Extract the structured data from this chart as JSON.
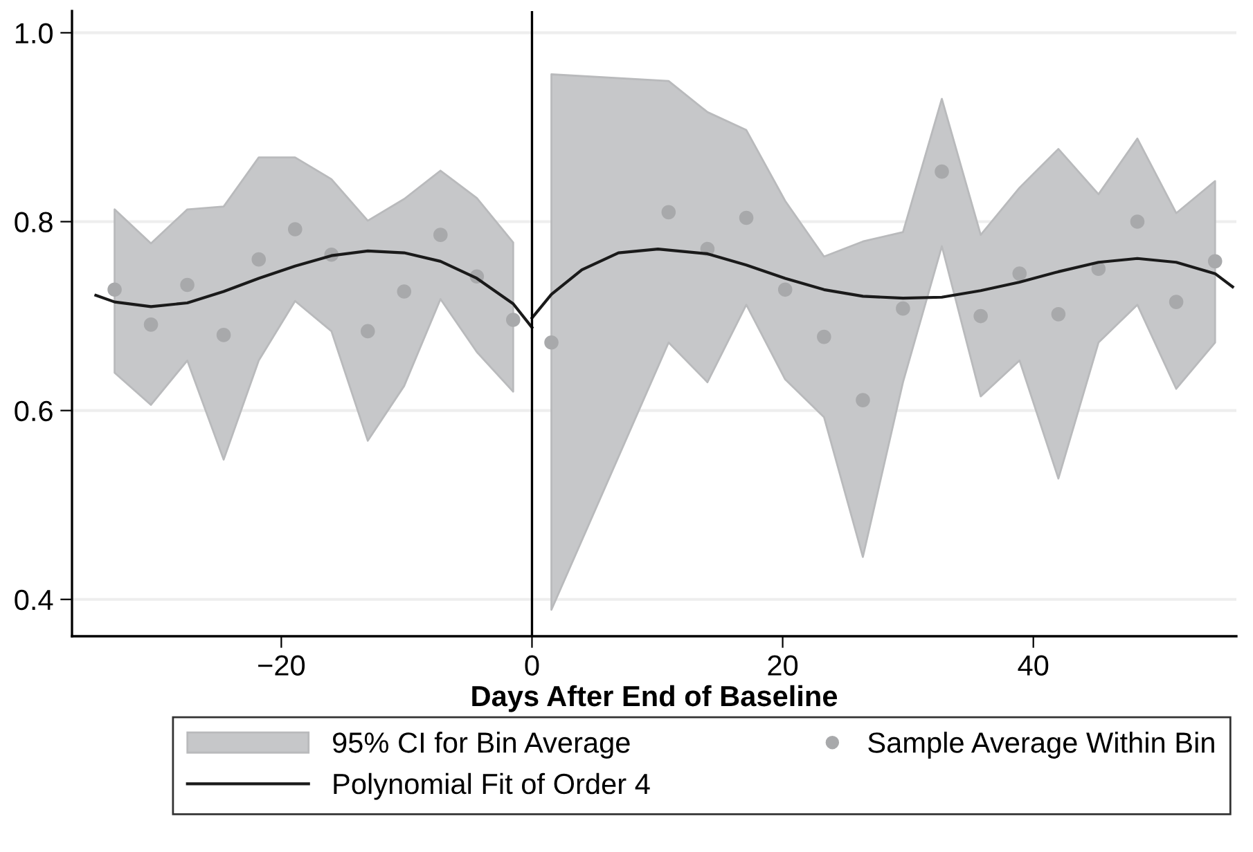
{
  "chart_data": {
    "type": "scatter",
    "xlabel": "Days After End of Baseline",
    "annotations": [
      "95% CI for Bin Average"
    ],
    "xlim": [
      -36.7,
      56.2
    ],
    "ylim": [
      0.361,
      1.023
    ],
    "xticks": [
      {
        "value": -20,
        "label": "−20"
      },
      0,
      20,
      40
    ],
    "yticks": [
      0.4,
      0.6,
      0.8,
      {
        "value": 1.0,
        "label": "1.0"
      }
    ],
    "grid": "y",
    "legend": "bottom",
    "ref_lines": [
      {
        "axis": "x",
        "value": 0,
        "color": "#000000"
      }
    ],
    "series": [
      {
        "name": "Sample Average Within Bin",
        "color": "#a8a9ab",
        "marker": "circle",
        "x": [
          -33.3,
          -30.4,
          -27.5,
          -24.6,
          -21.8,
          -18.9,
          -16.0,
          -13.1,
          -10.2,
          -7.3,
          -4.4,
          -1.5,
          1.55,
          10.9,
          14.0,
          17.1,
          20.2,
          23.3,
          26.4,
          29.6,
          32.7,
          35.8,
          38.9,
          42.0,
          45.2,
          48.3,
          51.4,
          54.5
        ],
        "values": [
          0.728,
          0.691,
          0.733,
          0.68,
          0.76,
          0.792,
          0.765,
          0.684,
          0.726,
          0.786,
          0.742,
          0.696,
          0.672,
          0.81,
          0.771,
          0.804,
          0.728,
          0.678,
          0.611,
          0.708,
          0.853,
          0.7,
          0.745,
          0.702,
          0.75,
          0.8,
          0.715,
          0.758
        ],
        "lower": [
          0.64,
          0.606,
          0.653,
          0.548,
          0.653,
          0.716,
          0.684,
          0.568,
          0.626,
          0.718,
          0.662,
          0.62,
          0.389,
          0.672,
          0.63,
          0.712,
          0.633,
          0.593,
          0.445,
          0.63,
          0.774,
          0.615,
          0.653,
          0.528,
          0.672,
          0.712,
          0.623,
          0.672
        ],
        "upper": [
          0.813,
          0.777,
          0.813,
          0.816,
          0.868,
          0.868,
          0.845,
          0.801,
          0.824,
          0.854,
          0.825,
          0.778,
          0.956,
          0.949,
          0.916,
          0.897,
          0.822,
          0.763,
          0.779,
          0.789,
          0.93,
          0.786,
          0.836,
          0.877,
          0.829,
          0.888,
          0.809,
          0.843
        ]
      },
      {
        "type": "line",
        "name": "Polynomial Fit of Order 4",
        "color": "#1a1a1a",
        "line_style": "solid",
        "x": [
          -34.8,
          -33.3,
          -30.4,
          -27.5,
          -24.6,
          -21.8,
          -18.9,
          -16.0,
          -13.1,
          -10.2,
          -7.3,
          -4.4,
          -1.5,
          0,
          null,
          0,
          1.55,
          3.98,
          6.9,
          10.05,
          14.0,
          17.1,
          20.2,
          23.3,
          26.4,
          29.6,
          32.7,
          35.8,
          38.9,
          42.0,
          45.2,
          48.3,
          51.4,
          54.5,
          55.9
        ],
        "values": [
          0.722,
          0.715,
          0.71,
          0.714,
          0.726,
          0.74,
          0.753,
          0.764,
          0.769,
          0.767,
          0.758,
          0.74,
          0.713,
          0.688,
          null,
          0.698,
          0.723,
          0.749,
          0.767,
          0.771,
          0.766,
          0.754,
          0.74,
          0.728,
          0.721,
          0.719,
          0.72,
          0.727,
          0.736,
          0.747,
          0.757,
          0.761,
          0.757,
          0.745,
          0.731
        ]
      }
    ]
  }
}
